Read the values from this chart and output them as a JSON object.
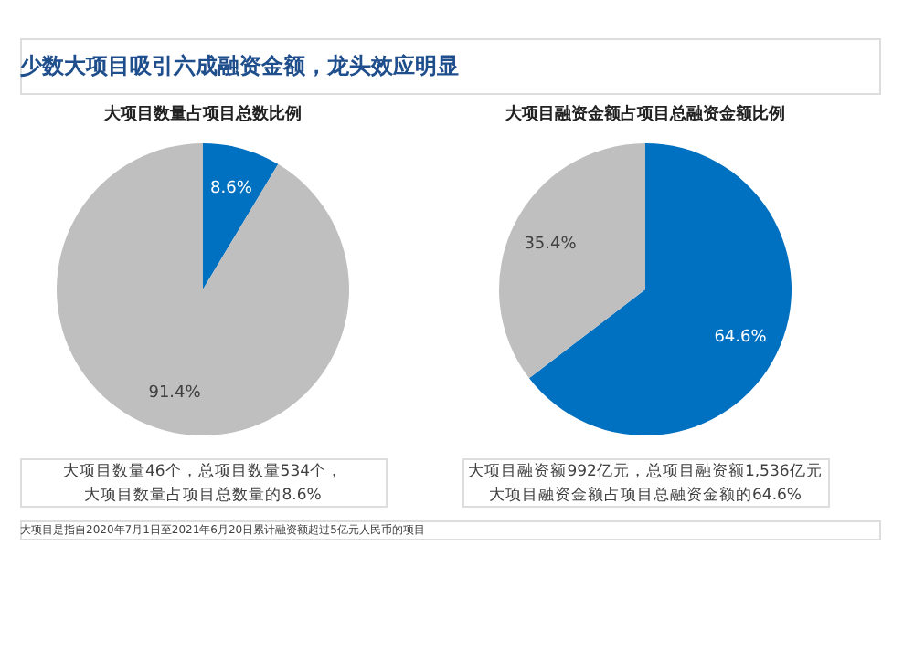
{
  "chart_data": [
    {
      "type": "pie",
      "title": "大项目数量占项目总数比例",
      "categories": [
        null,
        null
      ],
      "values": [
        8.6,
        91.4
      ],
      "colors": [
        "#0070c0",
        "#bfbfbf"
      ],
      "value_labels": [
        "8.6%",
        "91.4%"
      ],
      "annotations": [
        "少数大项目吸引六成融资金额，龙头效应明显",
        "大项目数量46个，总项目数量534个，",
        "大项目数量占项目总数量的8.6%",
        "大项目是指自2020年7月1日至2021年6月20日累计融资额超过5亿元人民币的项目"
      ]
    },
    {
      "type": "pie",
      "title": "大项目融资金额占项目总融资金额比例",
      "categories": [
        null,
        null
      ],
      "values": [
        64.6,
        35.4
      ],
      "colors": [
        "#0070c0",
        "#bfbfbf"
      ],
      "value_labels": [
        "64.6%",
        "35.4%"
      ],
      "annotations": [
        "大项目融资额992亿元，总项目融资额1,536亿元",
        "大项目融资金额占项目总融资金额的64.6%"
      ]
    }
  ]
}
